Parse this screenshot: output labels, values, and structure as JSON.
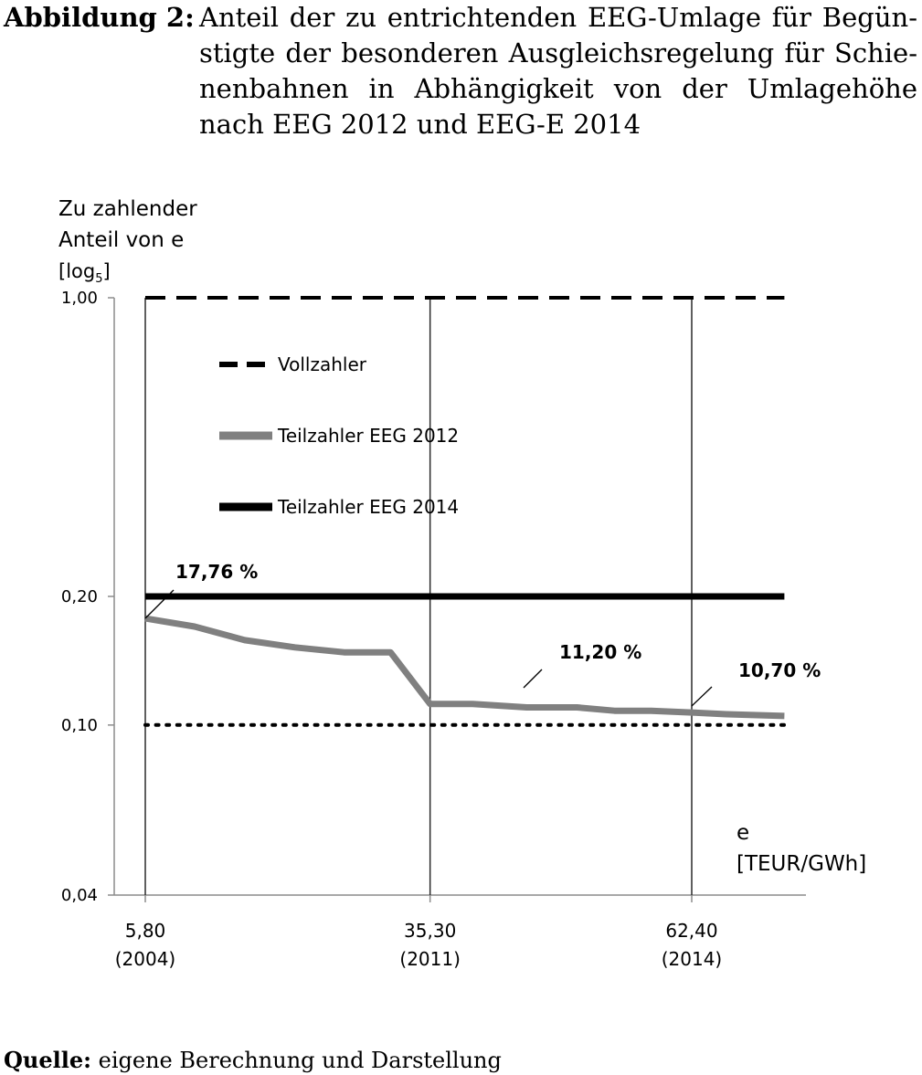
{
  "caption": {
    "label": "Abbildung 2:",
    "text": "Anteil der zu entrichtenden EEG-Umlage für Begün­stigte der besonderen Ausgleichsregelung für Schie­nenbahnen in Abhängigkeit von der Umlagehöhe nach EEG 2012 und EEG-E 2014"
  },
  "source": {
    "label": "Quelle:",
    "text": "eigene Berechnung und Darstellung"
  },
  "chart_data": {
    "type": "line",
    "ylabel_lines": [
      "Zu zahlender",
      "Anteil von e"
    ],
    "yscale_label": "[log",
    "yscale_sub": "5",
    "yscale_close": "]",
    "yscale": "log",
    "ylim": [
      0.04,
      1.0
    ],
    "yticks": [
      {
        "value": 1.0,
        "label": "1,00"
      },
      {
        "value": 0.2,
        "label": "0,20"
      },
      {
        "value": 0.1,
        "label": "0,10"
      },
      {
        "value": 0.04,
        "label": "0,04"
      }
    ],
    "xlabel_lines": [
      "e",
      "[TEUR/GWh]"
    ],
    "xlim": [
      5.8,
      72
    ],
    "xticks": [
      {
        "value": 5.8,
        "label": "5,80",
        "sub": "(2004)"
      },
      {
        "value": 35.3,
        "label": "35,30",
        "sub": "(2011)"
      },
      {
        "value": 62.4,
        "label": "62,40",
        "sub": "(2014)"
      }
    ],
    "series": [
      {
        "name": "Vollzahler",
        "style": "dashed",
        "color": "#000000",
        "x": [
          5.8,
          72
        ],
        "y": [
          1.0,
          1.0
        ]
      },
      {
        "name": "Teilzahler EEG 2012",
        "style": "solid-thick",
        "color": "#808080",
        "x": [
          5.8,
          10.9,
          16.1,
          21.3,
          26.4,
          31.2,
          35.3,
          39.7,
          45.3,
          50.5,
          54.4,
          58.2,
          62.4,
          66.0,
          72.0
        ],
        "y": [
          0.1776,
          0.17,
          0.158,
          0.152,
          0.148,
          0.148,
          0.112,
          0.112,
          0.11,
          0.11,
          0.108,
          0.108,
          0.107,
          0.106,
          0.105
        ]
      },
      {
        "name": "Teilzahler EEG 2014",
        "style": "solid-thick",
        "color": "#000000",
        "x": [
          5.8,
          72
        ],
        "y": [
          0.2,
          0.2
        ]
      },
      {
        "style": "dotted",
        "color": "#000000",
        "x": [
          5.8,
          72
        ],
        "y": [
          0.1,
          0.1
        ]
      }
    ],
    "annotations": [
      {
        "text": "17,76 %",
        "x": 5.8,
        "y": 0.1776
      },
      {
        "text": "11,20 %",
        "x": 35.3,
        "y": 0.112
      },
      {
        "text": "10,70 %",
        "x": 62.4,
        "y": 0.107
      }
    ],
    "vlines": [
      5.8,
      35.3,
      62.4
    ],
    "legend_position": "upper-left",
    "grid": false
  }
}
